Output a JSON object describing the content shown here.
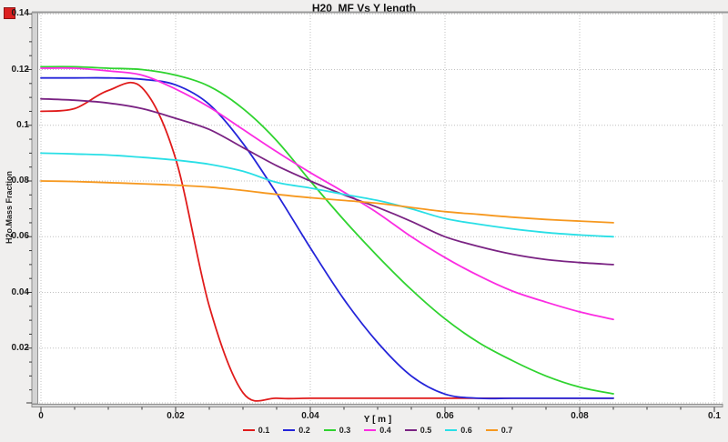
{
  "window": {
    "background": "#f0efee",
    "icon_color": "#dd2020"
  },
  "chart_data": {
    "type": "line",
    "title": "H20  MF Vs Y length",
    "xlabel": "Y [ m ]",
    "ylabel": "H2o.Mass Fraction",
    "xlim": [
      0,
      0.1
    ],
    "ylim": [
      0,
      0.1405
    ],
    "grid": "dotted at major ticks",
    "legend_position": "bottom",
    "x_ticks": [
      0,
      0.02,
      0.04,
      0.06,
      0.08,
      0.1
    ],
    "x_tick_labels": [
      "0",
      "0.02",
      "0.04",
      "0.06",
      "0.08",
      "0.1"
    ],
    "y_ticks": [
      0.02,
      0.04,
      0.06,
      0.08,
      0.1,
      0.12,
      0.14
    ],
    "y_tick_labels": [
      "0.02",
      "0.04",
      "0.06",
      "0.08",
      "0.1",
      "0.12",
      "0.14"
    ],
    "minor_tick_step": 0.005,
    "x": [
      0,
      0.005,
      0.01,
      0.015,
      0.02,
      0.025,
      0.03,
      0.035,
      0.04,
      0.045,
      0.05,
      0.055,
      0.06,
      0.065,
      0.07,
      0.075,
      0.08,
      0.085
    ],
    "series": [
      {
        "name": "0.1",
        "color": "#e01b1b",
        "values": [
          0.105,
          0.106,
          0.1125,
          0.1135,
          0.088,
          0.035,
          0.004,
          0.002,
          0.002,
          0.002,
          0.002,
          0.002,
          0.002,
          0.002,
          0.002,
          0.002,
          0.002,
          0.002
        ]
      },
      {
        "name": "0.2",
        "color": "#2424d9",
        "values": [
          0.117,
          0.117,
          0.117,
          0.1165,
          0.1145,
          0.1075,
          0.0935,
          0.0755,
          0.056,
          0.0375,
          0.022,
          0.01,
          0.0035,
          0.002,
          0.002,
          0.002,
          0.002,
          0.002
        ]
      },
      {
        "name": "0.3",
        "color": "#2fd32f",
        "values": [
          0.121,
          0.121,
          0.1205,
          0.12,
          0.118,
          0.114,
          0.106,
          0.0945,
          0.08,
          0.066,
          0.053,
          0.041,
          0.0305,
          0.022,
          0.0155,
          0.01,
          0.006,
          0.0036
        ]
      },
      {
        "name": "0.4",
        "color": "#fb2ce2",
        "values": [
          0.1205,
          0.1205,
          0.1195,
          0.118,
          0.113,
          0.1065,
          0.0985,
          0.0905,
          0.083,
          0.076,
          0.0685,
          0.06,
          0.0525,
          0.046,
          0.0405,
          0.0365,
          0.033,
          0.0303
        ]
      },
      {
        "name": "0.5",
        "color": "#7a2383",
        "values": [
          0.1095,
          0.109,
          0.108,
          0.106,
          0.1025,
          0.0985,
          0.092,
          0.0855,
          0.08,
          0.075,
          0.0705,
          0.0655,
          0.06,
          0.0565,
          0.0537,
          0.0518,
          0.0507,
          0.05
        ]
      },
      {
        "name": "0.6",
        "color": "#29dfe6",
        "values": [
          0.09,
          0.0897,
          0.0893,
          0.0885,
          0.0875,
          0.086,
          0.0835,
          0.0795,
          0.0775,
          0.0752,
          0.073,
          0.07,
          0.0665,
          0.0645,
          0.0628,
          0.0615,
          0.0606,
          0.06
        ]
      },
      {
        "name": "0.7",
        "color": "#f6981f",
        "values": [
          0.08,
          0.0798,
          0.0794,
          0.079,
          0.0785,
          0.0778,
          0.0766,
          0.0752,
          0.074,
          0.073,
          0.072,
          0.0705,
          0.069,
          0.068,
          0.067,
          0.0662,
          0.0656,
          0.065
        ]
      }
    ]
  }
}
